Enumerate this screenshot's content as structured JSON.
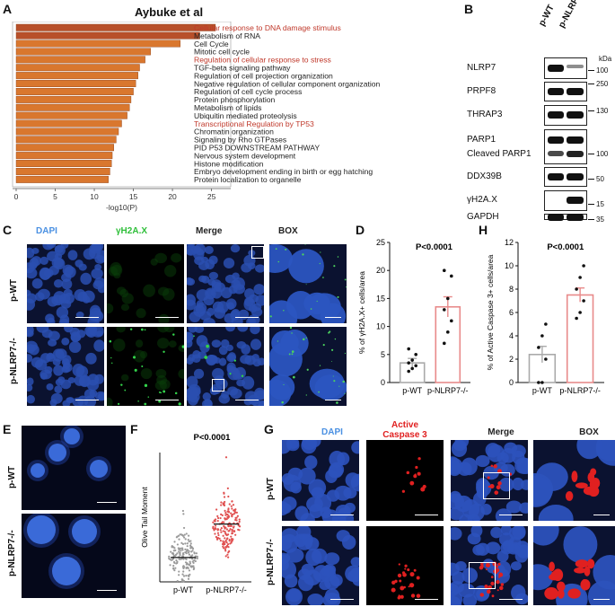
{
  "figure": {
    "panel_letters": [
      "A",
      "B",
      "C",
      "D",
      "E",
      "F",
      "G",
      "H"
    ],
    "panelA": {
      "title": "Aybuke et al",
      "chart_data": {
        "type": "bar",
        "orientation": "horizontal",
        "categories": [
          "Cellular response to DNA damage stimulus",
          "Metabolism of RNA",
          "Cell Cycle",
          "Mitotic cell cycle",
          "Regulation of cellular response to stress",
          "TGF-beta signaling pathway",
          "Regulation of  cell projection organization",
          "Negative regulation of cellular component organization",
          "Regulation of cell cycle process",
          "Protein phosphorylation",
          "Metabolism of lipids",
          "Ubiquitin mediated proteolysis",
          "Transcriptional Regulation by TP53",
          "Chromatin organization",
          "Signaling by Rho GTPases",
          "PID P53 DOWNSTREAM PATHWAY",
          "Nervous system development",
          "Histone modification",
          "Embryo development ending in birth or egg hatching",
          "Protein localization to organelle"
        ],
        "values": [
          25.5,
          23.5,
          21,
          17.2,
          16.5,
          15.8,
          15.6,
          15.3,
          15.0,
          14.7,
          14.5,
          14.2,
          13.5,
          13.1,
          12.8,
          12.5,
          12.3,
          12.2,
          12.0,
          11.8
        ],
        "highlighted": [
          0,
          4,
          12
        ],
        "highlight_color": "#c0392b",
        "xlabel": "-log10(P)",
        "xticks": [
          0,
          5,
          10,
          15,
          20,
          25
        ],
        "xlim": [
          0,
          27
        ]
      }
    },
    "panelB": {
      "lanes": [
        "p-WT",
        "p-NLRP7-/-"
      ],
      "kda_label": "kDa",
      "rows": [
        {
          "name": "NLRP7",
          "kda": "100",
          "wt": 1.0,
          "ko": 0.25
        },
        {
          "name": "PRPF8",
          "kda": "250",
          "wt": 1.0,
          "ko": 1.0
        },
        {
          "name": "THRAP3",
          "kda": "130",
          "wt": 1.0,
          "ko": 1.0
        },
        {
          "name": "PARP1",
          "kda": "",
          "wt": 1.0,
          "ko": 1.0
        },
        {
          "name": "Cleaved PARP1",
          "kda": "100",
          "wt": 0.6,
          "ko": 0.9
        },
        {
          "name": "DDX39B",
          "kda": "50",
          "wt": 1.0,
          "ko": 1.0
        },
        {
          "name": "γH2A.X",
          "kda": "15",
          "wt": 0.0,
          "ko": 1.0
        },
        {
          "name": "GAPDH",
          "kda": "35",
          "wt": 1.0,
          "ko": 1.0
        }
      ]
    },
    "panelC": {
      "columns": [
        "DAPI",
        "γH2A.X",
        "Merge",
        "BOX"
      ],
      "rows": [
        "p-WT",
        "p-NLRP7-/-"
      ]
    },
    "panelD": {
      "chart_data": {
        "type": "bar",
        "categories": [
          "p-WT",
          "p-NLRP7-/-"
        ],
        "values": [
          3.5,
          13.5
        ],
        "errors": [
          0.8,
          1.8
        ],
        "points": [
          [
            2,
            2.5,
            3,
            3.5,
            4,
            5,
            6
          ],
          [
            7,
            9,
            11,
            13,
            15,
            19,
            20
          ]
        ],
        "pvalue": "P<0.0001",
        "ylabel": "% of γH2A.X+ cells/area",
        "yticks": [
          0,
          5,
          10,
          15,
          20,
          25
        ],
        "ylim": [
          0,
          25
        ]
      }
    },
    "panelE": {
      "rows": [
        "p-WT",
        "p-NLRP7-/-"
      ]
    },
    "panelF": {
      "chart_data": {
        "type": "scatter",
        "categories": [
          "p-WT",
          "p-NLRP7-/-"
        ],
        "pvalue": "P<0.0001",
        "ylabel": "Olive Tail Moment",
        "medians": [
          1.6,
          3.8
        ]
      }
    },
    "panelG": {
      "columns": [
        "DAPI",
        "Active Caspase 3",
        "Merge",
        "BOX"
      ],
      "rows": [
        "p-WT",
        "p-NLRP7-/-"
      ]
    },
    "panelH": {
      "chart_data": {
        "type": "bar",
        "categories": [
          "p-WT",
          "p-NLRP7-/-"
        ],
        "values": [
          2.4,
          7.5
        ],
        "errors": [
          0.7,
          0.6
        ],
        "points": [
          [
            0,
            0,
            2,
            3,
            4,
            5
          ],
          [
            5.5,
            6,
            7,
            8,
            9,
            10
          ]
        ],
        "pvalue": "P<0.0001",
        "ylabel": "% of Active Caspase 3+ cells/area",
        "yticks": [
          0,
          2,
          4,
          6,
          8,
          10,
          12
        ],
        "ylim": [
          0,
          12
        ]
      }
    },
    "colors": {
      "dapi": "#3a6fd8",
      "gh2ax": "#2fbf3a",
      "caspase": "#e02020",
      "bar_wt": "#aaaaaa",
      "bar_ko": "#e88a8a",
      "bar_a": "#d9772e"
    }
  }
}
